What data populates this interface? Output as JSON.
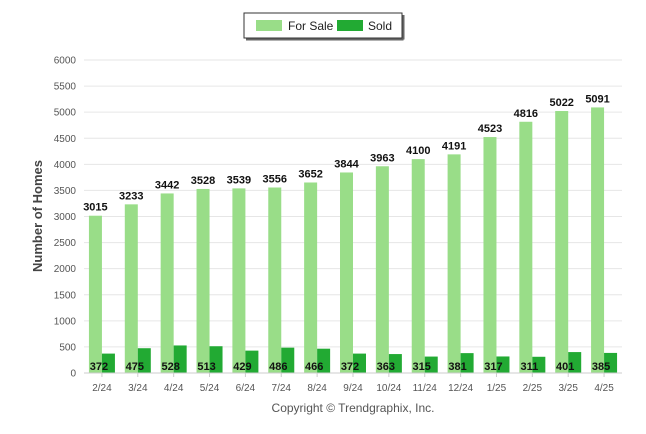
{
  "chart_data": {
    "type": "bar",
    "categories": [
      "2/24",
      "3/24",
      "4/24",
      "5/24",
      "6/24",
      "7/24",
      "8/24",
      "9/24",
      "10/24",
      "11/24",
      "12/24",
      "1/25",
      "2/25",
      "3/25",
      "4/25"
    ],
    "series": [
      {
        "name": "For Sale",
        "color": "#99dd88",
        "values": [
          3015,
          3233,
          3442,
          3528,
          3539,
          3556,
          3652,
          3844,
          3963,
          4100,
          4191,
          4523,
          4816,
          5022,
          5091
        ]
      },
      {
        "name": "Sold",
        "color": "#22aa33",
        "values": [
          372,
          475,
          528,
          513,
          429,
          486,
          466,
          372,
          363,
          315,
          381,
          317,
          311,
          401,
          385
        ]
      }
    ],
    "ylabel": "Number of Homes",
    "xlabel": "",
    "ylim": [
      0,
      6000
    ],
    "yticks": [
      0,
      500,
      1000,
      1500,
      2000,
      2500,
      3000,
      3500,
      4000,
      4500,
      5000,
      5500,
      6000
    ],
    "grid": true,
    "legend_position": "top-center",
    "data_labels": true
  },
  "credit": "Copyright © Trendgraphix, Inc."
}
